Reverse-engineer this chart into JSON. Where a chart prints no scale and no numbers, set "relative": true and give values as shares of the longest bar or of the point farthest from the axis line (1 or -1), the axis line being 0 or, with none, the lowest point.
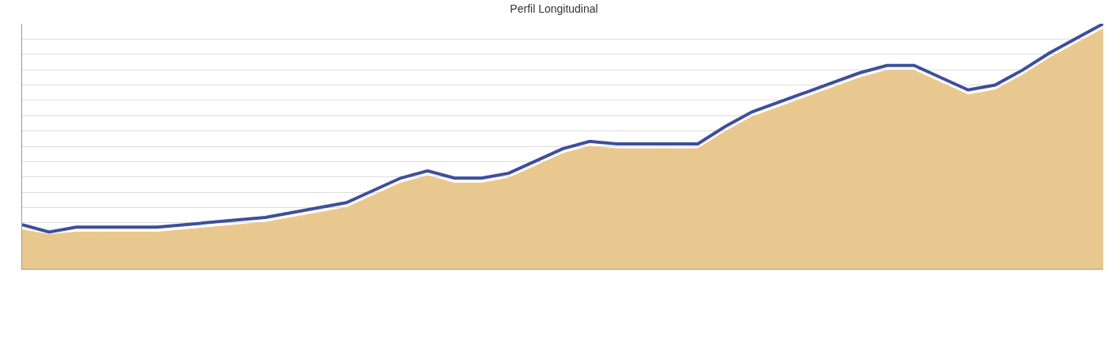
{
  "chart_data": {
    "type": "area",
    "title": "Perfil Longitudinal",
    "relative": true,
    "grid": true,
    "categories": [
      null,
      null,
      null,
      null,
      null,
      null,
      null,
      null,
      null,
      null,
      null,
      null,
      null,
      null,
      null,
      null,
      null,
      null,
      null,
      null,
      null,
      null,
      null,
      null,
      null,
      null,
      null,
      null,
      null,
      null,
      null,
      null,
      null,
      null,
      null,
      null,
      null,
      null,
      null,
      null,
      null
    ],
    "series": [
      {
        "color": "#e9c88f",
        "values": [
          0.16,
          0.14,
          0.15,
          0.15,
          0.15,
          0.15,
          0.16,
          0.17,
          0.18,
          0.19,
          0.21,
          0.23,
          0.25,
          0.3,
          0.35,
          0.38,
          0.35,
          0.35,
          0.37,
          0.42,
          0.47,
          0.5,
          0.49,
          0.49,
          0.49,
          0.49,
          0.56,
          0.62,
          0.66,
          0.7,
          0.74,
          0.78,
          0.81,
          0.81,
          0.76,
          0.71,
          0.73,
          0.79,
          0.86,
          0.92,
          0.98
        ]
      },
      {
        "type": "line",
        "color": "#3d4f9c",
        "values": [
          0.18,
          0.15,
          0.17,
          0.17,
          0.17,
          0.17,
          0.18,
          0.19,
          0.2,
          0.21,
          0.23,
          0.25,
          0.27,
          0.32,
          0.37,
          0.4,
          0.37,
          0.37,
          0.39,
          0.44,
          0.49,
          0.52,
          0.51,
          0.51,
          0.51,
          0.51,
          0.58,
          0.64,
          0.68,
          0.72,
          0.76,
          0.8,
          0.83,
          0.83,
          0.78,
          0.73,
          0.75,
          0.81,
          0.88,
          0.94,
          1.0
        ]
      }
    ]
  }
}
